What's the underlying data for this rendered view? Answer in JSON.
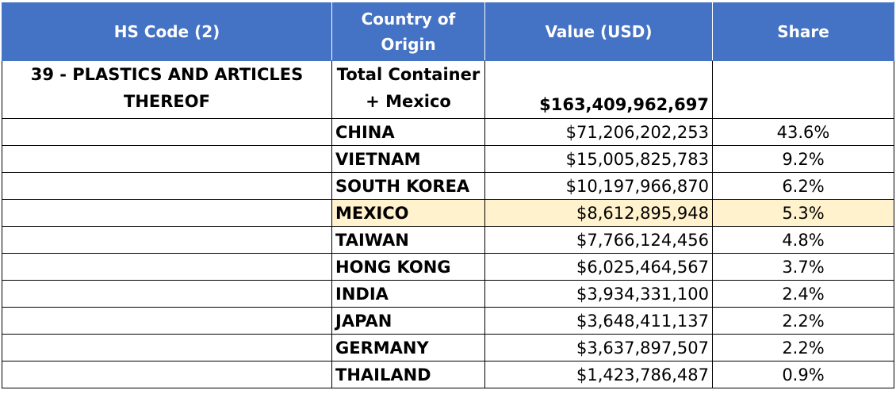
{
  "header": {
    "hs_code": "HS Code (2)",
    "country": "Country of Origin",
    "value": "Value (USD)",
    "share": "Share"
  },
  "total": {
    "hs_code": "39 - PLASTICS AND ARTICLES THEREOF",
    "country": "Total Container + Mexico",
    "value": "$163,409,962,697",
    "share": ""
  },
  "rows": [
    {
      "country": "CHINA",
      "value": "$71,206,202,253",
      "share": "43.6%"
    },
    {
      "country": "VIETNAM",
      "value": "$15,005,825,783",
      "share": "9.2%"
    },
    {
      "country": "SOUTH KOREA",
      "value": "$10,197,966,870",
      "share": "6.2%"
    },
    {
      "country": "MEXICO",
      "value": "$8,612,895,948",
      "share": "5.3%",
      "highlight": true
    },
    {
      "country": "TAIWAN",
      "value": "$7,766,124,456",
      "share": "4.8%"
    },
    {
      "country": "HONG KONG",
      "value": "$6,025,464,567",
      "share": "3.7%"
    },
    {
      "country": "INDIA",
      "value": "$3,934,331,100",
      "share": "2.4%"
    },
    {
      "country": "JAPAN",
      "value": "$3,648,411,137",
      "share": "2.2%"
    },
    {
      "country": "GERMANY",
      "value": "$3,637,897,507",
      "share": "2.2%"
    },
    {
      "country": "THAILAND",
      "value": "$1,423,786,487",
      "share": "0.9%"
    }
  ],
  "colors": {
    "header_bg": "#4472c4",
    "header_text": "#ffffff",
    "highlight_bg": "#fff2cc",
    "highlight_text": "#000000"
  }
}
